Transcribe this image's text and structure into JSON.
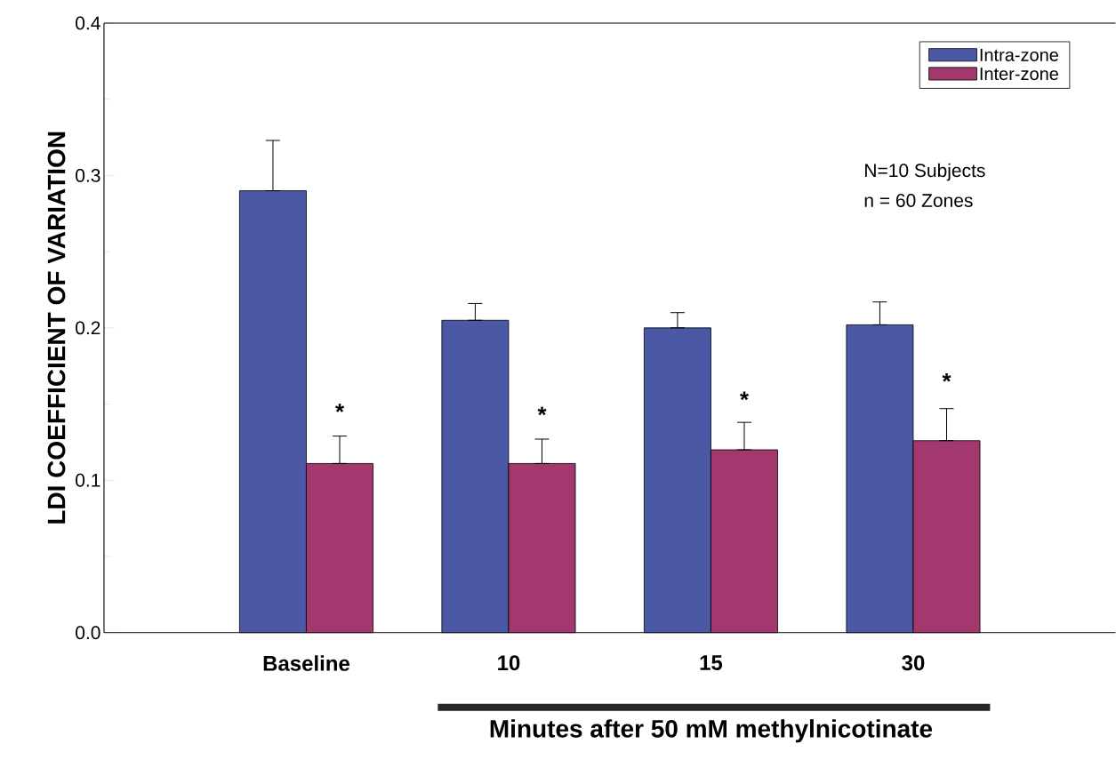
{
  "chart_data": {
    "type": "bar",
    "ylabel": "LDI COEFFICIENT OF VARIATION",
    "xlabel": "Minutes after 50 mM methylnicotinate",
    "categories": [
      "Baseline",
      "10",
      "15",
      "30"
    ],
    "series": [
      {
        "name": "Intra-zone",
        "color": "#4a58a6",
        "values": [
          0.29,
          0.205,
          0.2,
          0.202
        ],
        "errors": [
          [
            0.29,
            0.323
          ],
          [
            0.205,
            0.216
          ],
          [
            0.2,
            0.21
          ],
          [
            0.202,
            0.217
          ]
        ]
      },
      {
        "name": "Inter-zone",
        "color": "#a3386f",
        "values": [
          0.111,
          0.111,
          0.12,
          0.126
        ],
        "errors": [
          [
            0.111,
            0.129
          ],
          [
            0.111,
            0.127
          ],
          [
            0.12,
            0.138
          ],
          [
            0.126,
            0.147
          ]
        ]
      }
    ],
    "ylim": [
      0,
      0.4
    ],
    "yticks": [
      {
        "value": 0,
        "label": "0.0"
      },
      0.1,
      0.2,
      0.3,
      0.4
    ],
    "legend": "top right",
    "annotations": [
      {
        "text": "*",
        "x": "Baseline",
        "y": 0.145
      },
      {
        "text": "*",
        "x": "10",
        "y": 0.143
      },
      {
        "text": "*",
        "x": "15",
        "y": 0.153
      },
      {
        "text": "*",
        "x": "30",
        "y": 0.165
      },
      "N=10 Subjects",
      "n = 60 Zones"
    ]
  }
}
